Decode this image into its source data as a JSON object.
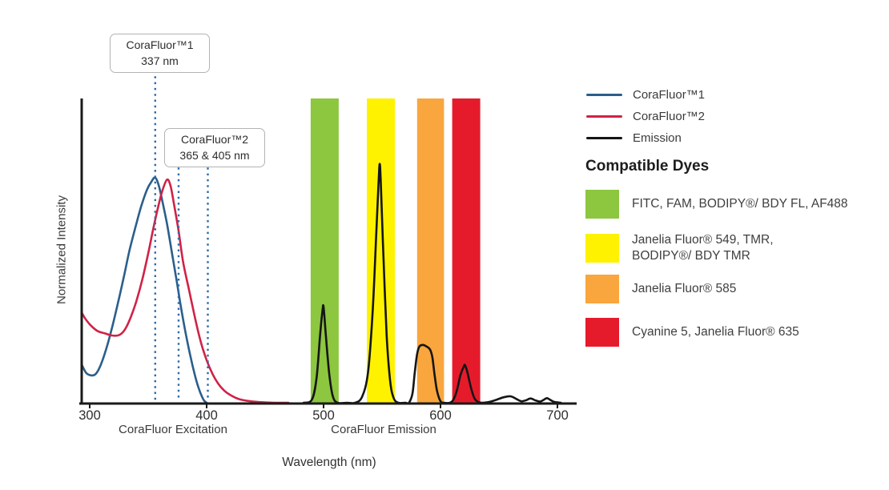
{
  "colors": {
    "blue": "#2a5f8c",
    "red": "#d02246",
    "black": "#151515",
    "dashed_marker": "#2e6ba8",
    "axis": "#1a1a1a",
    "band_green": "#8dc63f",
    "band_yellow": "#fef200",
    "band_orange": "#f8a63d",
    "band_red": "#e51b2c"
  },
  "axis": {
    "x_ticks": [
      {
        "label": "300",
        "nm": 300
      },
      {
        "label": "400",
        "nm": 400
      },
      {
        "label": "500",
        "nm": 500
      },
      {
        "label": "600",
        "nm": 600
      },
      {
        "label": "700",
        "nm": 700
      }
    ],
    "excitation_region_label": "CoraFluor Excitation",
    "emission_region_label": "CoraFluor Emission",
    "x_title": "Wavelength (nm)",
    "y_title": "Normalized Intensity"
  },
  "callouts": [
    {
      "title": "CoraFluor™1",
      "subtitle": "337 nm"
    },
    {
      "title": "CoraFluor™2",
      "subtitle": "365 & 405 nm"
    }
  ],
  "legend": {
    "items": [
      {
        "label": "CoraFluor™1",
        "color": "#2a5f8c"
      },
      {
        "label": "CoraFluor™2",
        "color": "#d02246"
      },
      {
        "label": "Emission",
        "color": "#151515"
      }
    ]
  },
  "compatible_dyes": {
    "heading": "Compatible Dyes",
    "items": [
      {
        "color": "#8dc63f",
        "label": "FITC, FAM, BODIPY®/ BDY FL, AF488"
      },
      {
        "color": "#fef200",
        "label": "Janelia Fluor® 549, TMR,\nBODIPY®/ BDY TMR"
      },
      {
        "color": "#f8a63d",
        "label": "Janelia Fluor® 585"
      },
      {
        "color": "#e51b2c",
        "label": "Cyanine 5, Janelia Fluor® 635"
      }
    ]
  },
  "chart_data": {
    "type": "line",
    "title": "CoraFluor excitation and emission spectra with compatible dye filter bands",
    "xlabel": "Wavelength (nm)",
    "ylabel": "Normalized Intensity",
    "xlim": [
      293,
      716
    ],
    "ylim": [
      0,
      1
    ],
    "grid": false,
    "legend_position": "right",
    "excitation_markers_nm": {
      "CoraFluor1": [
        337
      ],
      "CoraFluor2": [
        365,
        405
      ]
    },
    "markers": [
      {
        "label_nm": 337,
        "drawn_nm": 356
      },
      {
        "label_nm": 365,
        "drawn_nm": 376
      },
      {
        "label_nm": 405,
        "drawn_nm": 401
      }
    ],
    "bands": [
      {
        "dyes": "FITC, FAM, BODIPY®/ BDY FL, AF488",
        "color": "#8dc63f",
        "from_nm": 489,
        "to_nm": 513
      },
      {
        "dyes": "Janelia Fluor® 549, TMR, BODIPY®/ BDY TMR",
        "color": "#fef200",
        "from_nm": 537,
        "to_nm": 561
      },
      {
        "dyes": "Janelia Fluor® 585",
        "color": "#f8a63d",
        "from_nm": 580,
        "to_nm": 603
      },
      {
        "dyes": "Cyanine 5, Janelia Fluor® 635",
        "color": "#e51b2c",
        "from_nm": 610,
        "to_nm": 634
      }
    ],
    "series": [
      {
        "name": "CoraFluor™1",
        "color_key": "blue",
        "points": [
          [
            293,
            0.126
          ],
          [
            297,
            0.098
          ],
          [
            301,
            0.09
          ],
          [
            305,
            0.094
          ],
          [
            309,
            0.12
          ],
          [
            314,
            0.175
          ],
          [
            319,
            0.245
          ],
          [
            324,
            0.325
          ],
          [
            329,
            0.41
          ],
          [
            334,
            0.5
          ],
          [
            339,
            0.575
          ],
          [
            344,
            0.645
          ],
          [
            349,
            0.7
          ],
          [
            353,
            0.728
          ],
          [
            356,
            0.74
          ],
          [
            359,
            0.715
          ],
          [
            362,
            0.665
          ],
          [
            366,
            0.59
          ],
          [
            370,
            0.5
          ],
          [
            374,
            0.41
          ],
          [
            378,
            0.315
          ],
          [
            382,
            0.23
          ],
          [
            386,
            0.155
          ],
          [
            390,
            0.09
          ],
          [
            393,
            0.05
          ],
          [
            396,
            0.02
          ],
          [
            398,
            0.006
          ],
          [
            400,
            0
          ]
        ]
      },
      {
        "name": "CoraFluor™2",
        "color_key": "red",
        "points": [
          [
            293,
            0.297
          ],
          [
            297,
            0.272
          ],
          [
            302,
            0.25
          ],
          [
            307,
            0.235
          ],
          [
            313,
            0.228
          ],
          [
            319,
            0.221
          ],
          [
            325,
            0.222
          ],
          [
            330,
            0.24
          ],
          [
            335,
            0.28
          ],
          [
            340,
            0.335
          ],
          [
            345,
            0.405
          ],
          [
            350,
            0.49
          ],
          [
            354,
            0.565
          ],
          [
            358,
            0.635
          ],
          [
            362,
            0.695
          ],
          [
            366,
            0.733
          ],
          [
            369,
            0.715
          ],
          [
            372,
            0.655
          ],
          [
            376,
            0.565
          ],
          [
            380,
            0.46
          ],
          [
            385,
            0.37
          ],
          [
            390,
            0.28
          ],
          [
            395,
            0.2
          ],
          [
            400,
            0.14
          ],
          [
            405,
            0.095
          ],
          [
            410,
            0.062
          ],
          [
            415,
            0.04
          ],
          [
            420,
            0.026
          ],
          [
            427,
            0.013
          ],
          [
            435,
            0.006
          ],
          [
            445,
            0.002
          ],
          [
            458,
            0
          ],
          [
            470,
            0
          ]
        ]
      },
      {
        "name": "Emission",
        "color_key": "black",
        "points": [
          [
            483,
            0
          ],
          [
            490,
            0.01
          ],
          [
            494,
            0.08
          ],
          [
            497,
            0.22
          ],
          [
            499,
            0.3
          ],
          [
            500,
            0.315
          ],
          [
            502,
            0.22
          ],
          [
            505,
            0.09
          ],
          [
            508,
            0.02
          ],
          [
            512,
            0
          ],
          [
            520,
            0
          ],
          [
            527,
            0
          ],
          [
            533,
            0.02
          ],
          [
            538,
            0.1
          ],
          [
            542,
            0.3
          ],
          [
            545,
            0.55
          ],
          [
            547,
            0.72
          ],
          [
            548,
            0.785
          ],
          [
            549,
            0.72
          ],
          [
            551,
            0.5
          ],
          [
            554,
            0.22
          ],
          [
            557,
            0.07
          ],
          [
            560,
            0.015
          ],
          [
            564,
            0
          ],
          [
            570,
            0
          ],
          [
            573,
            0
          ],
          [
            576,
            0.03
          ],
          [
            578,
            0.1
          ],
          [
            580,
            0.16
          ],
          [
            582,
            0.185
          ],
          [
            585,
            0.19
          ],
          [
            588,
            0.185
          ],
          [
            591,
            0.175
          ],
          [
            593,
            0.15
          ],
          [
            595,
            0.09
          ],
          [
            597,
            0.04
          ],
          [
            600,
            0.005
          ],
          [
            603,
            0
          ],
          [
            608,
            0
          ],
          [
            611,
            0.01
          ],
          [
            614,
            0.04
          ],
          [
            617,
            0.09
          ],
          [
            620,
            0.12
          ],
          [
            621,
            0.123
          ],
          [
            623,
            0.1
          ],
          [
            626,
            0.05
          ],
          [
            629,
            0.015
          ],
          [
            632,
            0.003
          ],
          [
            636,
            0
          ],
          [
            642,
            0.003
          ],
          [
            648,
            0.01
          ],
          [
            654,
            0.018
          ],
          [
            660,
            0.021
          ],
          [
            665,
            0.012
          ],
          [
            669,
            0.005
          ],
          [
            673,
            0.008
          ],
          [
            677,
            0.014
          ],
          [
            681,
            0.008
          ],
          [
            685,
            0.004
          ],
          [
            688,
            0.009
          ],
          [
            691,
            0.015
          ],
          [
            694,
            0.009
          ],
          [
            697,
            0.003
          ],
          [
            700,
            0.001
          ],
          [
            703,
            0
          ]
        ]
      }
    ]
  }
}
